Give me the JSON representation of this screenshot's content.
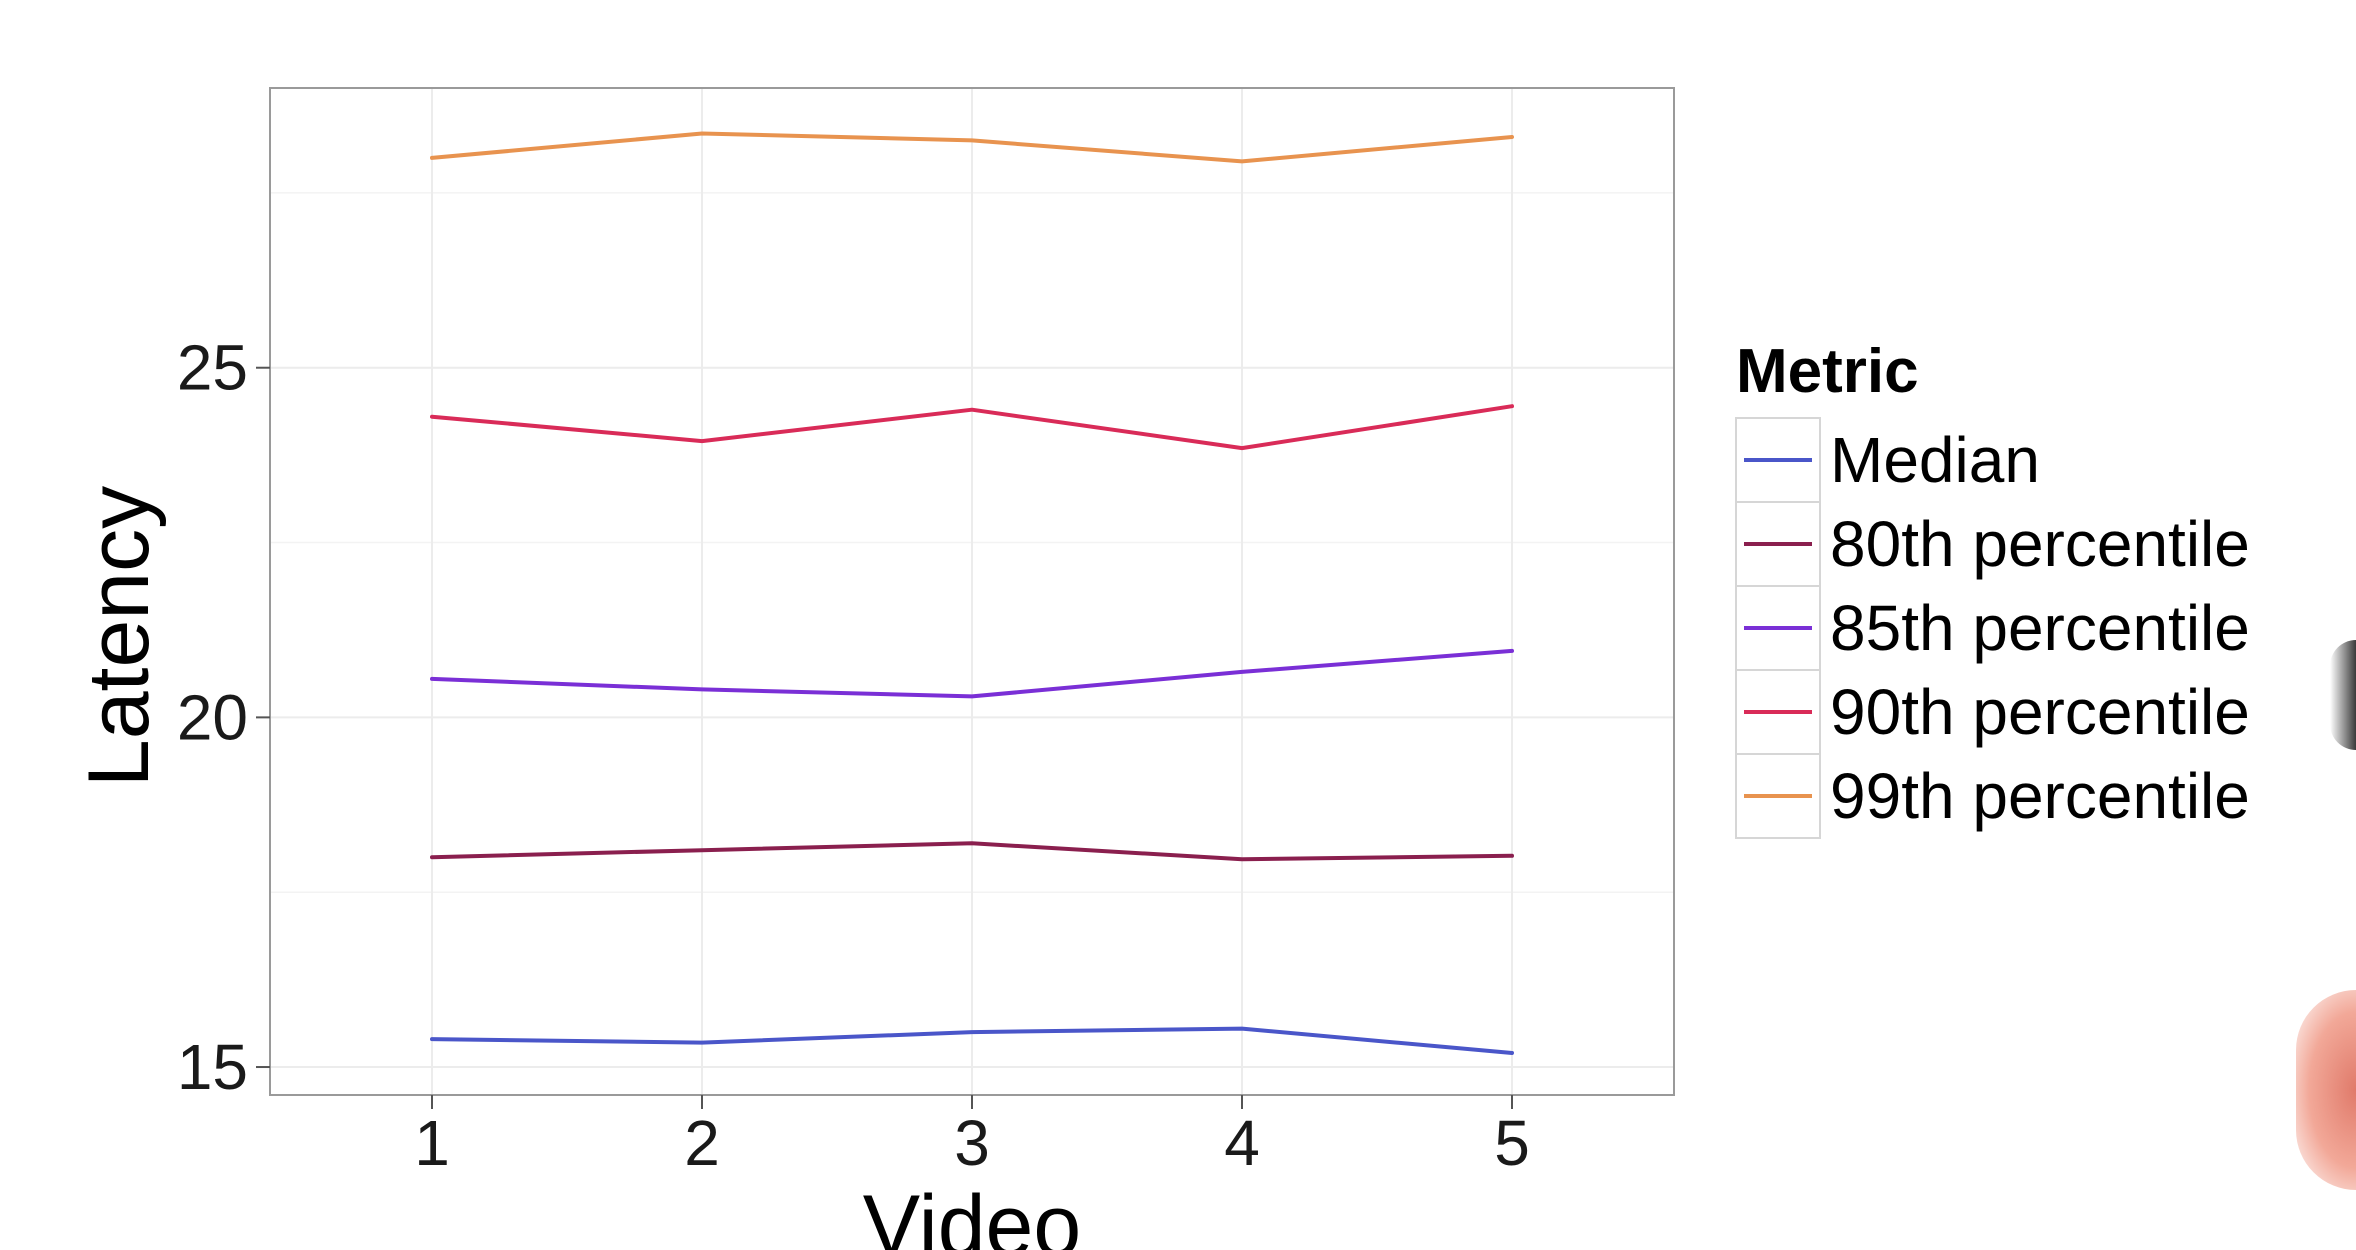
{
  "chart_data": {
    "type": "line",
    "x": [
      1,
      2,
      3,
      4,
      5
    ],
    "xlabel": "Video",
    "ylabel": "Latency",
    "x_ticks": [
      "1",
      "2",
      "3",
      "4",
      "5"
    ],
    "y_ticks": [
      "15",
      "20",
      "25"
    ],
    "xlim": [
      0.4,
      5.6
    ],
    "ylim": [
      14.6,
      29.0
    ],
    "grid": true,
    "legend": {
      "title": "Metric",
      "placement": "right"
    },
    "series": [
      {
        "name": "Median",
        "color": "#4a56c9",
        "values": [
          15.4,
          15.35,
          15.5,
          15.55,
          15.2
        ]
      },
      {
        "name": "80th percentile",
        "color": "#8a1f4e",
        "values": [
          18.0,
          18.1,
          18.2,
          17.97,
          18.02
        ]
      },
      {
        "name": "85th percentile",
        "color": "#7a2fd6",
        "values": [
          20.55,
          20.4,
          20.3,
          20.65,
          20.95
        ]
      },
      {
        "name": "90th percentile",
        "color": "#d92b58",
        "values": [
          24.3,
          23.95,
          24.4,
          23.85,
          24.45
        ]
      },
      {
        "name": "99th percentile",
        "color": "#e8934f",
        "values": [
          28.0,
          28.35,
          28.25,
          27.95,
          28.3
        ]
      }
    ]
  }
}
